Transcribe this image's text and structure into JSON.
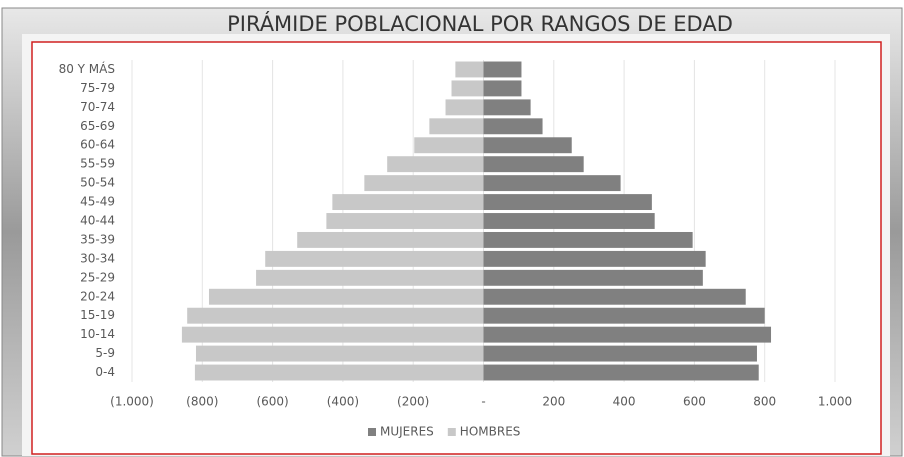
{
  "chart_data": {
    "type": "pyramid",
    "title": "PIRÁMIDE POBLACIONAL POR RANGOS DE EDAD",
    "categories": [
      "80 Y MÁS",
      "75-79",
      "70-74",
      "65-69",
      "60-64",
      "55-59",
      "50-54",
      "45-49",
      "40-44",
      "35-39",
      "30-34",
      "25-29",
      "20-24",
      "15-19",
      "10-14",
      "5-9",
      "0-4"
    ],
    "series": [
      {
        "name": "MUJERES",
        "color": "#808080",
        "values": [
          108,
          108,
          134,
          168,
          251,
          285,
          390,
          479,
          487,
          595,
          632,
          624,
          746,
          800,
          818,
          778,
          783
        ]
      },
      {
        "name": "HOMBRES",
        "color": "#c8c8c8",
        "values": [
          -80,
          -91,
          -108,
          -154,
          -197,
          -274,
          -339,
          -430,
          -447,
          -530,
          -621,
          -647,
          -781,
          -843,
          -858,
          -818,
          -821
        ]
      }
    ],
    "xlim": [
      -1000,
      1000
    ],
    "xticks": [
      {
        "value": -1000,
        "label": "(1.000)"
      },
      {
        "value": -800,
        "label": "(800)"
      },
      {
        "value": -600,
        "label": "(600)"
      },
      {
        "value": -400,
        "label": "(400)"
      },
      {
        "value": -200,
        "label": "(200)"
      },
      {
        "value": 0,
        "label": "-"
      },
      200,
      400,
      600,
      800,
      {
        "value": 1000,
        "label": "1.000"
      }
    ],
    "grid": true,
    "legend": "bottom"
  }
}
